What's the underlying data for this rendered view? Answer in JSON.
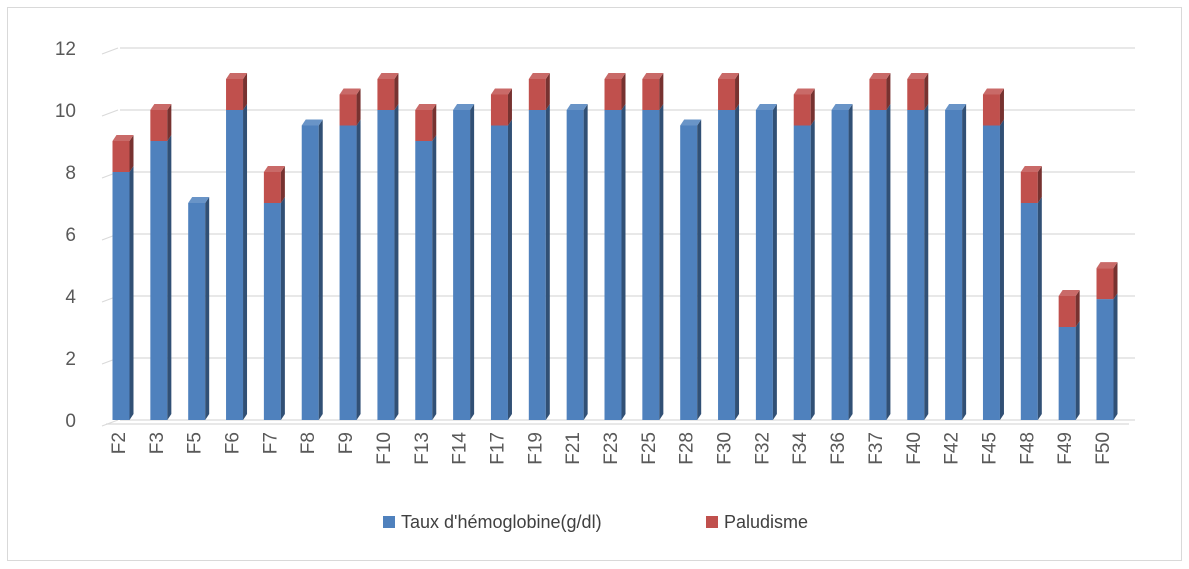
{
  "chart_data": {
    "type": "bar",
    "stacked": true,
    "three_d": true,
    "categories": [
      "F2",
      "F3",
      "F5",
      "F6",
      "F7",
      "F8",
      "F9",
      "F10",
      "F13",
      "F14",
      "F17",
      "F19",
      "F21",
      "F23",
      "F25",
      "F28",
      "F30",
      "F32",
      "F34",
      "F36",
      "F37",
      "F40",
      "F42",
      "F45",
      "F48",
      "F49",
      "F50"
    ],
    "series": [
      {
        "name": "Taux d'hémoglobine(g/dl)",
        "color": "#4f81bd",
        "values": [
          8,
          9,
          7,
          10,
          7,
          9.5,
          9.5,
          10,
          9,
          10,
          9.5,
          10,
          10,
          10,
          10,
          9.5,
          10,
          10,
          9.5,
          10,
          10,
          10,
          10,
          9.5,
          7,
          3,
          3.9
        ]
      },
      {
        "name": "Paludisme",
        "color": "#c0504d",
        "values": [
          1,
          1,
          0,
          1,
          1,
          0,
          1,
          1,
          1,
          0,
          1,
          1,
          0,
          1,
          1,
          0,
          1,
          0,
          1,
          0,
          1,
          1,
          0,
          1,
          1,
          1,
          1
        ]
      }
    ],
    "ylim": [
      0,
      12
    ],
    "yticks": [
      "0",
      "2",
      "4",
      "6",
      "8",
      "10",
      "12"
    ],
    "grid": true,
    "legend": "bottom",
    "title": "",
    "xlabel": "",
    "ylabel": ""
  }
}
